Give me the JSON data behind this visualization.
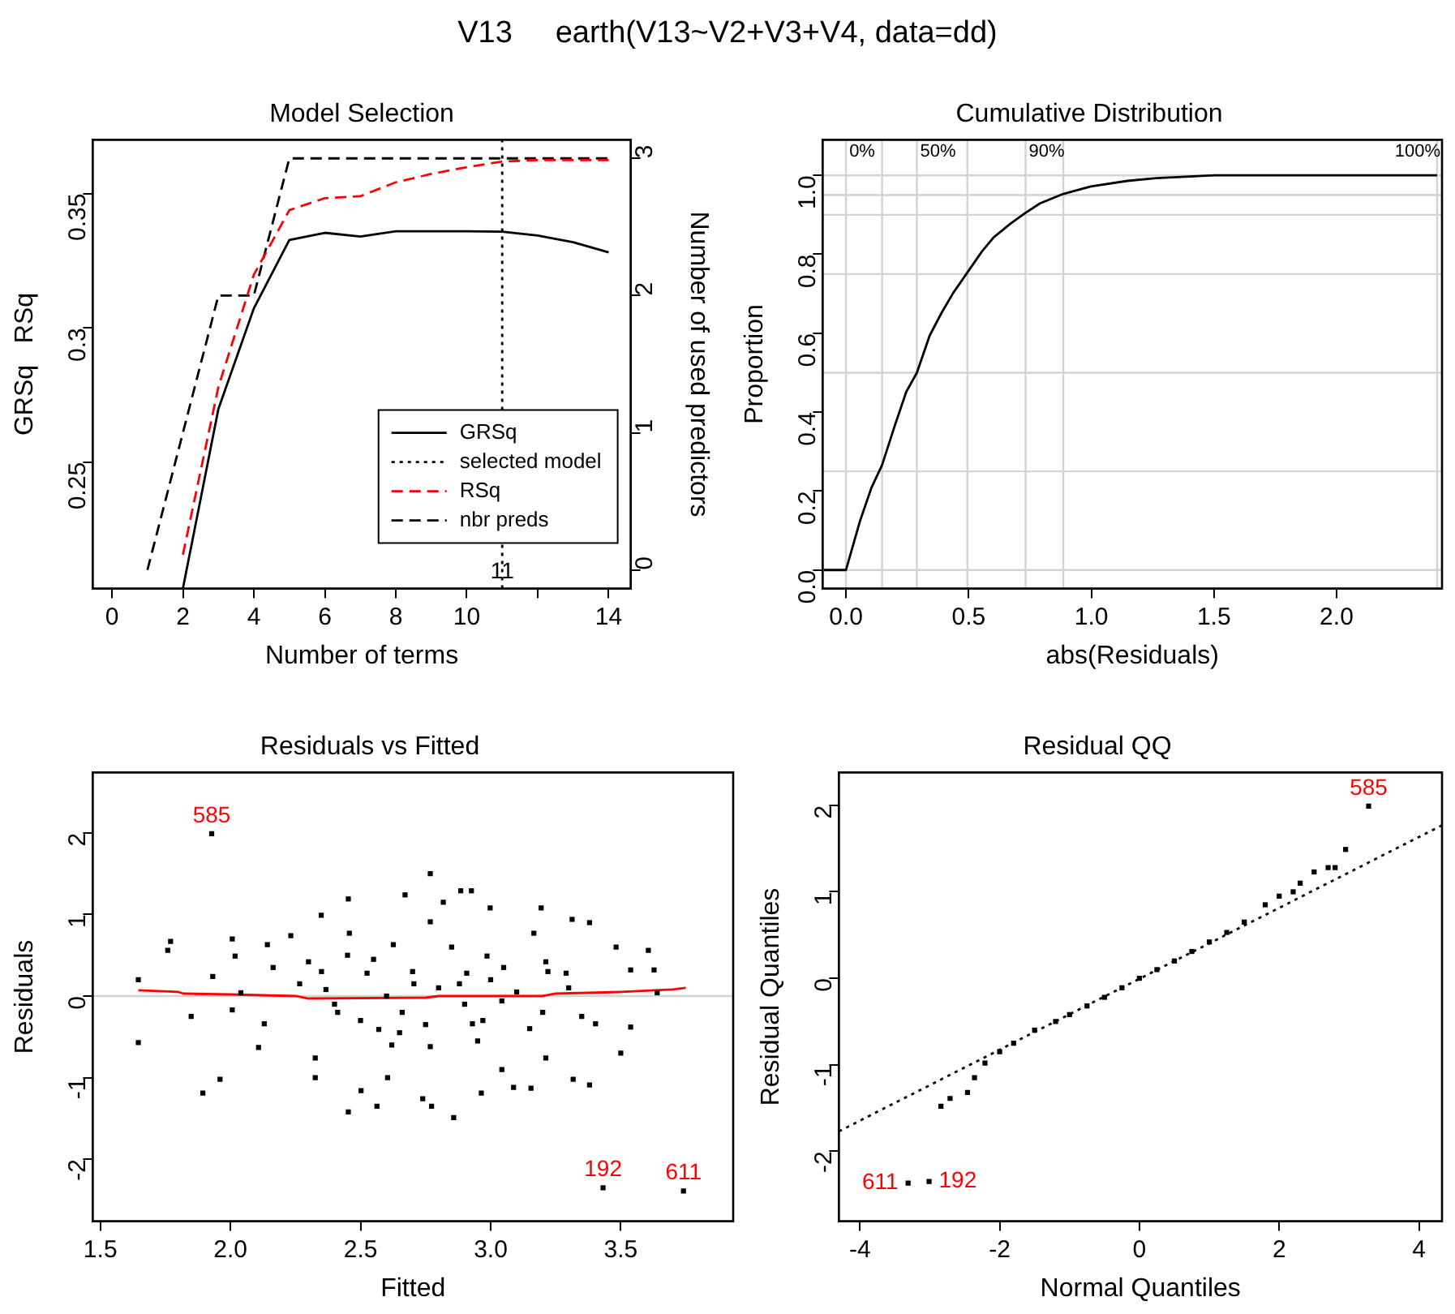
{
  "chart_data": [
    {
      "type": "line",
      "title": "Model Selection",
      "xlabel": "Number of terms",
      "ylabel": "GRSq   RSq",
      "y2label": "Number of used predictors",
      "marker": "none",
      "legend": "bottom right",
      "series": [
        {
          "name": "GRSq",
          "color": "#000000",
          "line_style": "solid",
          "x": [
            2,
            3,
            4,
            5,
            6,
            7,
            8,
            9,
            10,
            11,
            12,
            13,
            14
          ],
          "values": [
            0.203,
            0.2698,
            0.3073,
            0.3327,
            0.3354,
            0.334,
            0.336,
            0.336,
            0.336,
            0.3358,
            0.3344,
            0.3319,
            0.3281
          ]
        },
        {
          "name": "selected model",
          "color": "#000000",
          "line_style": "dotted",
          "x": [
            11,
            11
          ],
          "values": [
            0.203,
            0.37
          ]
        },
        {
          "name": "RSq",
          "color": "#ff0000",
          "line_style": "dashed",
          "x": [
            2,
            3,
            4,
            5,
            6,
            7,
            8,
            9,
            10,
            11,
            12,
            13,
            14
          ],
          "values": [
            0.2156,
            0.278,
            0.3198,
            0.3438,
            0.3483,
            0.349,
            0.3542,
            0.3573,
            0.3598,
            0.3619,
            0.3625,
            0.3625,
            0.3625
          ]
        },
        {
          "name": "nbr preds",
          "color": "#000000",
          "line_style": "dashed",
          "axis": "y2",
          "x": [
            1,
            2,
            3,
            4,
            5,
            6,
            7,
            8,
            9,
            10,
            11,
            12,
            13,
            14
          ],
          "values": [
            0,
            1,
            2,
            2,
            3,
            3,
            3,
            3,
            3,
            3,
            3,
            3,
            3,
            3
          ]
        }
      ],
      "xlim": [
        -0.54,
        14.62
      ],
      "xticks": [
        0,
        2,
        4,
        6,
        8,
        10,
        {
          "value": 12,
          "label": null
        },
        14
      ],
      "ylim": [
        0.203,
        0.37
      ],
      "yticks": [
        0.25,
        0.3,
        0.35
      ],
      "y2lim": [
        -0.135,
        3.135
      ],
      "y2ticks": [
        0,
        1,
        2,
        3
      ],
      "annotations": [
        "V13     earth(V13~V2+V3+V4, data=dd)",
        {
          "text": "11",
          "x": 11
        }
      ]
    },
    {
      "type": "line",
      "title": "Cumulative Distribution",
      "xlabel": "abs(Residuals)",
      "ylabel": "Proportion",
      "marker": "none",
      "color": "#000000",
      "x": [
        -0.09,
        0,
        0.057,
        0.104,
        0.147,
        0.199,
        0.246,
        0.289,
        0.341,
        0.389,
        0.436,
        0.495,
        0.555,
        0.602,
        0.673,
        0.732,
        0.791,
        0.886,
        0.998,
        1.147,
        1.265,
        1.502,
        2.41
      ],
      "values": [
        0,
        0,
        0.124,
        0.209,
        0.266,
        0.366,
        0.452,
        0.5,
        0.594,
        0.651,
        0.701,
        0.754,
        0.808,
        0.843,
        0.879,
        0.905,
        0.929,
        0.953,
        0.972,
        0.986,
        0.993,
        1.0,
        1.0
      ],
      "xlim": [
        -0.095,
        2.43
      ],
      "xticks": [
        {
          "value": 0,
          "label": "0.0"
        },
        {
          "value": 0.5,
          "label": "0.5"
        },
        {
          "value": 1,
          "label": "1.0"
        },
        {
          "value": 1.5,
          "label": "1.5"
        },
        {
          "value": 2,
          "label": "2.0"
        }
      ],
      "ylim": [
        -0.047,
        1.09
      ],
      "yticks": [
        {
          "value": 0,
          "label": "0.0"
        },
        {
          "value": 0.2,
          "label": "0.2"
        },
        {
          "value": 0.4,
          "label": "0.4"
        },
        {
          "value": 0.6,
          "label": "0.6"
        },
        {
          "value": 0.8,
          "label": "0.8"
        },
        {
          "value": 1,
          "label": "1.0"
        }
      ],
      "ref_lines": [
        {
          "axis": "x",
          "value": 0,
          "color": "#d3d3d3"
        },
        {
          "axis": "x",
          "value": 0.147,
          "color": "#d3d3d3"
        },
        {
          "axis": "x",
          "value": 0.289,
          "color": "#d3d3d3"
        },
        {
          "axis": "x",
          "value": 0.495,
          "color": "#d3d3d3"
        },
        {
          "axis": "x",
          "value": 0.732,
          "color": "#d3d3d3"
        },
        {
          "axis": "x",
          "value": 0.886,
          "color": "#d3d3d3"
        },
        {
          "axis": "x",
          "value": 2.41,
          "color": "#d3d3d3"
        },
        {
          "axis": "y",
          "value": 0,
          "color": "#d3d3d3"
        },
        {
          "axis": "y",
          "value": 0.25,
          "color": "#d3d3d3"
        },
        {
          "axis": "y",
          "value": 0.5,
          "color": "#d3d3d3"
        },
        {
          "axis": "y",
          "value": 0.75,
          "color": "#d3d3d3"
        },
        {
          "axis": "y",
          "value": 0.9,
          "color": "#d3d3d3"
        },
        {
          "axis": "y",
          "value": 0.95,
          "color": "#d3d3d3"
        },
        {
          "axis": "y",
          "value": 1.0,
          "color": "#d3d3d3"
        }
      ],
      "annotations": [
        {
          "text": "0%",
          "x": 0,
          "y": 1.06
        },
        {
          "text": "50%",
          "x": 0.289,
          "y": 1.06
        },
        {
          "text": "90%",
          "x": 0.732,
          "y": 1.06
        },
        {
          "text": "100%",
          "x": 2.41,
          "y": 1.06
        }
      ]
    },
    {
      "type": "scatter",
      "title": "Residuals vs Fitted",
      "xlabel": "Fitted",
      "ylabel": "Residuals",
      "series": [
        {
          "color": "#000000",
          "marker": "square",
          "x": [
            1.646,
            1.646,
            1.759,
            1.77,
            1.849,
            1.894,
            1.928,
            1.932,
            1.96,
            2.007,
            2.018,
            2.007,
            2.04,
            2.108,
            2.142,
            2.164,
            2.13,
            2.232,
            2.266,
            2.3,
            2.326,
            2.326,
            2.349,
            2.367,
            2.412,
            2.453,
            2.453,
            2.457,
            2.502,
            2.525,
            2.563,
            2.57,
            2.604,
            2.626,
            2.671,
            2.66,
            2.705,
            2.739,
            2.768,
            2.768,
            2.768,
            2.773,
            2.818,
            2.858,
            2.885,
            2.926,
            2.908,
            2.93,
            2.964,
            2.998,
            2.986,
            3.043,
            3.043,
            3.088,
            3.155,
            3.166,
            3.194,
            3.212,
            3.212,
            3.29,
            3.313,
            3.317,
            3.38,
            3.38,
            3.403,
            3.432,
            3.482,
            3.5,
            3.538,
            3.538,
            3.606,
            3.628,
            3.64,
            3.741,
            2.6,
            2.8,
            2.9,
            3.1,
            3.2,
            2.5,
            2.7,
            3.0,
            2.4,
            3.3,
            2.55,
            2.65,
            2.85,
            2.95,
            3.05,
            3.15,
            2.45,
            2.75,
            2.88,
            3.22,
            3.35,
            2.35,
            2.62,
            2.97
          ],
          "values": [
            0.2,
            -0.57,
            0.56,
            0.67,
            -0.25,
            -1.19,
            1.99,
            0.24,
            -1.02,
            0.7,
            0.49,
            -0.17,
            0.04,
            -0.63,
            0.63,
            0.35,
            -0.34,
            0.74,
            0.15,
            0.42,
            -0.76,
            -1.0,
            0.99,
            0.08,
            -0.2,
            1.19,
            -1.42,
            0.77,
            -1.16,
            0.28,
            -1.35,
            -0.41,
            -1.0,
            0.63,
            1.24,
            -0.2,
            0.15,
            -1.26,
            1.5,
            0.91,
            -0.62,
            -1.35,
            1.15,
            -1.49,
            1.29,
            1.29,
            0.28,
            -0.34,
            -1.19,
            1.08,
            0.49,
            -0.06,
            -0.9,
            -1.12,
            -1.13,
            0.77,
            1.08,
            0.42,
            -0.76,
            0.28,
            0.94,
            -1.02,
            0.9,
            -1.09,
            -0.34,
            -2.35,
            0.6,
            -0.7,
            0.32,
            -0.38,
            0.56,
            0.32,
            0.04,
            -2.39,
            0.0,
            0.1,
            -0.1,
            0.05,
            -0.2,
            -0.3,
            0.3,
            0.2,
            -0.1,
            0.1,
            0.45,
            -0.45,
            0.6,
            -0.55,
            0.35,
            -0.4,
            0.5,
            -0.35,
            0.15,
            0.3,
            -0.25,
            0.3,
            -0.6,
            -0.3
          ]
        },
        {
          "type": "line",
          "color": "#ff0000",
          "marker": "none",
          "x": [
            1.646,
            1.8,
            1.82,
            2.0,
            2.25,
            2.3,
            2.75,
            2.8,
            3.0,
            3.2,
            3.25,
            3.5,
            3.7,
            3.75
          ],
          "values": [
            0.07,
            0.05,
            0.03,
            0.02,
            0.0,
            -0.03,
            -0.02,
            0.0,
            0.0,
            0.0,
            0.03,
            0.05,
            0.08,
            0.1
          ]
        }
      ],
      "xlim": [
        1.471,
        3.932
      ],
      "xticks": [
        {
          "value": 1.5,
          "label": "1.5"
        },
        {
          "value": 2,
          "label": "2.0"
        },
        {
          "value": 2.5,
          "label": "2.5"
        },
        {
          "value": 3,
          "label": "3.0"
        },
        {
          "value": 3.5,
          "label": "3.5"
        }
      ],
      "ylim": [
        -2.76,
        2.74
      ],
      "yticks": [
        -2,
        -1,
        0,
        1,
        2
      ],
      "ref_lines": [
        {
          "axis": "y",
          "value": 0,
          "color": "#d3d3d3"
        }
      ],
      "annotations": [
        {
          "text": "585",
          "x": 1.928,
          "y": 1.99
        },
        {
          "text": "192",
          "x": 3.432,
          "y": -2.35
        },
        {
          "text": "611",
          "x": 3.741,
          "y": -2.39
        }
      ]
    },
    {
      "type": "scatter",
      "title": "Residual QQ",
      "xlabel": "Normal Quantiles",
      "ylabel": "Residual Quantiles",
      "series": [
        {
          "color": "#000000",
          "marker": "square",
          "x": [
            -3.31,
            -3.01,
            -2.84,
            -2.71,
            -2.46,
            -2.36,
            -2.21,
            -2.0,
            -1.8,
            -1.5,
            -1.2,
            -1.0,
            -0.75,
            -0.5,
            -0.25,
            0,
            0.25,
            0.5,
            0.75,
            1.0,
            1.25,
            1.5,
            1.8,
            2.0,
            2.2,
            2.3,
            2.5,
            2.7,
            2.8,
            2.95,
            3.28
          ],
          "values": [
            -2.37,
            -2.35,
            -1.48,
            -1.39,
            -1.32,
            -1.15,
            -0.98,
            -0.85,
            -0.75,
            -0.6,
            -0.5,
            -0.42,
            -0.32,
            -0.22,
            -0.11,
            0,
            0.1,
            0.2,
            0.31,
            0.42,
            0.53,
            0.65,
            0.85,
            0.95,
            1.0,
            1.1,
            1.23,
            1.28,
            1.28,
            1.49,
            1.99
          ]
        },
        {
          "type": "line",
          "color": "#000000",
          "marker": "none",
          "line_style": "dotted",
          "x": [
            -4.3,
            4.33
          ],
          "values": [
            -1.77,
            1.77
          ]
        }
      ],
      "xlim": [
        -4.3,
        4.33
      ],
      "xticks": [
        -4,
        -2,
        0,
        2,
        4
      ],
      "ylim": [
        -2.81,
        2.38
      ],
      "yticks": [
        -2,
        -1,
        0,
        1,
        2
      ],
      "annotations": [
        {
          "text": "585",
          "x": 3.28,
          "y": 1.99
        },
        {
          "text": "611",
          "x": -3.31,
          "y": -2.37
        },
        {
          "text": "192",
          "x": -3.01,
          "y": -2.35
        }
      ]
    }
  ]
}
